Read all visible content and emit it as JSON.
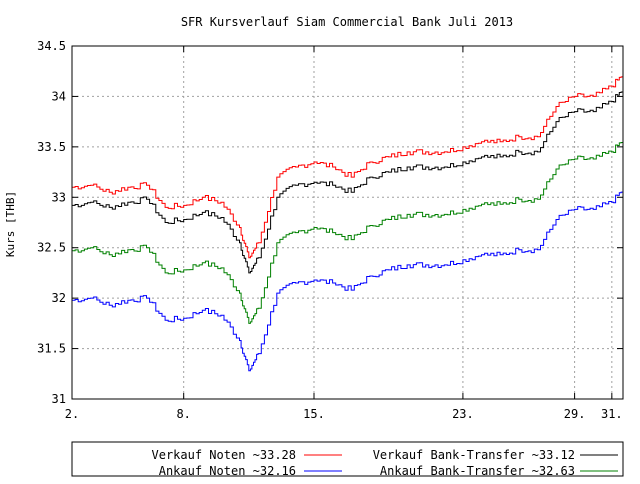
{
  "chart_data": {
    "type": "line",
    "title": "SFR Kursverlauf Siam Commercial Bank Juli 2013",
    "xlabel": "",
    "ylabel": "Kurs [THB]",
    "xlim": [
      2,
      31.6
    ],
    "ylim": [
      31,
      34.5
    ],
    "x_ticks": [
      {
        "value": 2,
        "label": "2."
      },
      {
        "value": 8,
        "label": "8."
      },
      {
        "value": 15,
        "label": "15."
      },
      {
        "value": 23,
        "label": "23."
      },
      {
        "value": 29,
        "label": "29."
      },
      {
        "value": 31,
        "label": "31."
      }
    ],
    "y_ticks": [
      {
        "value": 31,
        "label": "31"
      },
      {
        "value": 31.5,
        "label": "31.5"
      },
      {
        "value": 32,
        "label": "32"
      },
      {
        "value": 32.5,
        "label": "32.5"
      },
      {
        "value": 33,
        "label": "33"
      },
      {
        "value": 33.5,
        "label": "33.5"
      },
      {
        "value": 34,
        "label": "34"
      },
      {
        "value": 34.5,
        "label": "34.5"
      }
    ],
    "grid": true,
    "legend_position": "bottom",
    "x": [
      2,
      3,
      4,
      5,
      6,
      7,
      8,
      9,
      10,
      11,
      11.5,
      12,
      13,
      14,
      15,
      16,
      17,
      18,
      19,
      20,
      21,
      22,
      23,
      24,
      25,
      26,
      27,
      28,
      29,
      30,
      31,
      31.6
    ],
    "series": [
      {
        "name": "Verkauf Noten ~33.28",
        "color": "#ff0000",
        "values": [
          33.1,
          33.12,
          33.05,
          33.1,
          33.12,
          32.9,
          32.92,
          33.0,
          32.95,
          32.7,
          32.4,
          32.55,
          33.2,
          33.3,
          33.35,
          33.3,
          33.2,
          33.35,
          33.4,
          33.45,
          33.45,
          33.45,
          33.5,
          33.55,
          33.55,
          33.6,
          33.6,
          33.9,
          34.0,
          34.0,
          34.1,
          34.22
        ]
      },
      {
        "name": "Verkauf Bank-Transfer ~33.12",
        "color": "#000000",
        "values": [
          32.92,
          32.95,
          32.9,
          32.95,
          32.98,
          32.75,
          32.78,
          32.85,
          32.8,
          32.55,
          32.25,
          32.4,
          33.0,
          33.12,
          33.15,
          33.12,
          33.05,
          33.2,
          33.25,
          33.3,
          33.3,
          33.3,
          33.35,
          33.4,
          33.4,
          33.45,
          33.45,
          33.75,
          33.85,
          33.85,
          33.95,
          34.07
        ]
      },
      {
        "name": "Ankauf Noten ~32.16",
        "color": "#0000ff",
        "values": [
          31.98,
          32.0,
          31.93,
          31.98,
          32.0,
          31.78,
          31.8,
          31.88,
          31.83,
          31.58,
          31.28,
          31.45,
          32.05,
          32.15,
          32.18,
          32.15,
          32.08,
          32.22,
          32.28,
          32.33,
          32.33,
          32.33,
          32.38,
          32.43,
          32.43,
          32.48,
          32.48,
          32.78,
          32.88,
          32.88,
          32.95,
          33.08
        ]
      },
      {
        "name": "Ankauf Bank-Transfer ~32.63",
        "color": "#008000",
        "values": [
          32.47,
          32.5,
          32.43,
          32.48,
          32.5,
          32.25,
          32.28,
          32.35,
          32.3,
          32.05,
          31.75,
          31.9,
          32.55,
          32.65,
          32.7,
          32.65,
          32.58,
          32.72,
          32.78,
          32.83,
          32.83,
          32.83,
          32.88,
          32.93,
          32.93,
          32.98,
          32.98,
          33.28,
          33.38,
          33.38,
          33.45,
          33.57
        ]
      }
    ]
  }
}
